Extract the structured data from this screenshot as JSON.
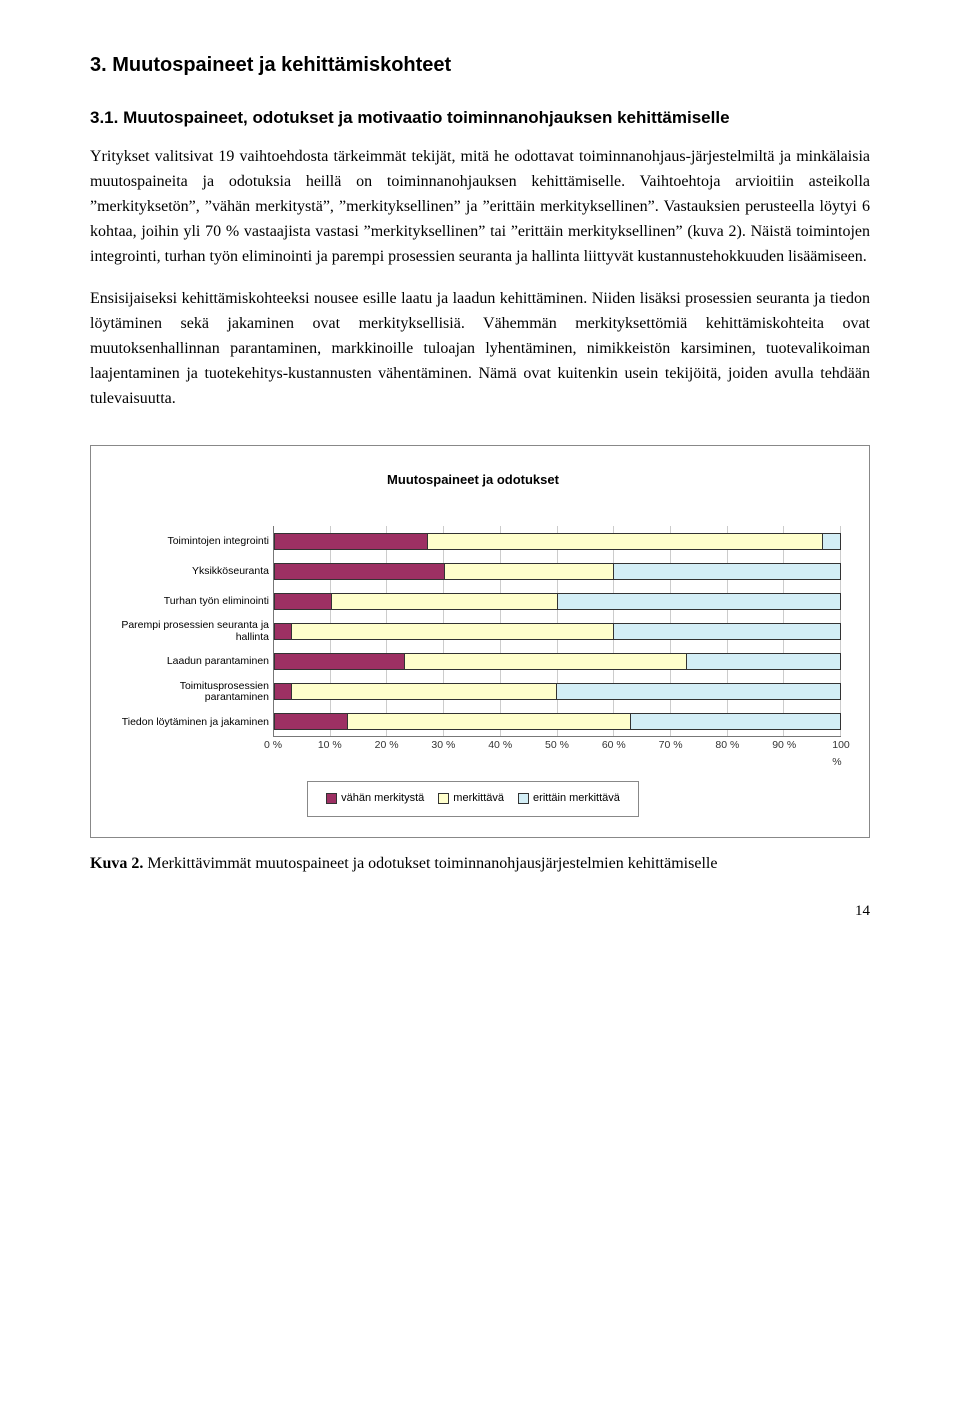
{
  "heading": "3. Muutospaineet ja kehittämiskohteet",
  "subheading": "3.1.  Muutospaineet, odotukset ja motivaatio toiminnanohjauksen kehittämiselle",
  "para1": "Yritykset valitsivat 19 vaihtoehdosta tärkeimmät tekijät, mitä he odottavat toiminnanohjaus-järjestelmiltä ja minkälaisia muutospaineita ja odotuksia heillä on toiminnanohjauksen kehittämiselle. Vaihtoehtoja arvioitiin asteikolla ”merkityksetön”, ”vähän merkitystä”, ”merkityksellinen” ja ”erittäin merkityksellinen”. Vastauksien perusteella löytyi 6 kohtaa, joihin yli 70 % vastaajista vastasi ”merkityksellinen” tai ”erittäin merkityksellinen” (kuva 2). Näistä toimintojen integrointi, turhan työn eliminointi ja parempi prosessien seuranta ja hallinta liittyvät kustannustehokkuuden lisäämiseen.",
  "para2": "Ensisijaiseksi kehittämiskohteeksi nousee esille laatu ja laadun kehittäminen. Niiden lisäksi prosessien seuranta ja tiedon löytäminen sekä jakaminen ovat merkityksellisiä. Vähemmän merkityksettömiä kehittämiskohteita ovat muutoksenhallinnan parantaminen, markkinoille tuloajan lyhentäminen, nimikkeistön karsiminen, tuotevalikoiman laajentaminen ja tuotekehitys-kustannusten vähentäminen. Nämä ovat kuitenkin usein tekijöitä, joiden avulla tehdään tulevaisuutta.",
  "chart": {
    "title": "Muutospaineet ja odotukset",
    "type": "stacked-horizontal-bar",
    "xlim": [
      0,
      100
    ],
    "xtick_step": 10,
    "xtick_labels": [
      "0 %",
      "10 %",
      "20 %",
      "30 %",
      "40 %",
      "50 %",
      "60 %",
      "70 %",
      "80 %",
      "90 %",
      "100 %"
    ],
    "colors": {
      "low": "#9d3063",
      "mid": "#ffffcc",
      "high": "#d3eef6",
      "border": "#333333",
      "grid": "#cccccc"
    },
    "categories": [
      {
        "label": "Toimintojen integrointi",
        "low": 27,
        "mid": 70,
        "high": 3
      },
      {
        "label": "Yksikköseuranta",
        "low": 30,
        "mid": 30,
        "high": 40
      },
      {
        "label": "Turhan työn  eliminointi",
        "low": 10,
        "mid": 40,
        "high": 50
      },
      {
        "label": "Parempi prosessien seuranta ja hallinta",
        "low": 3,
        "mid": 57,
        "high": 40
      },
      {
        "label": "Laadun parantaminen",
        "low": 23,
        "mid": 50,
        "high": 27
      },
      {
        "label": "Toimitusprosessien parantaminen",
        "low": 3,
        "mid": 47,
        "high": 50
      },
      {
        "label": "Tiedon löytäminen ja jakaminen",
        "low": 13,
        "mid": 50,
        "high": 37
      }
    ],
    "legend": [
      {
        "label": "vähän merkitystä",
        "color": "#9d3063"
      },
      {
        "label": "merkittävä",
        "color": "#ffffcc"
      },
      {
        "label": "erittäin merkittävä",
        "color": "#d3eef6"
      }
    ]
  },
  "caption_label": "Kuva 2.",
  "caption_text": " Merkittävimmät muutospaineet ja odotukset toiminnanohjausjärjestelmien kehittämiselle",
  "page_number": "14"
}
